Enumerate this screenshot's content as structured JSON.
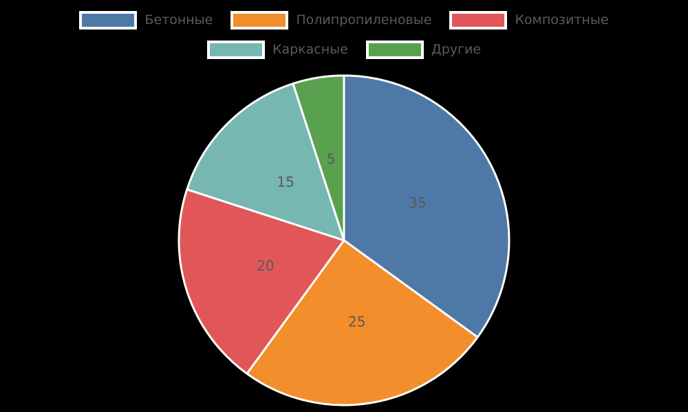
{
  "chart_data": {
    "type": "pie",
    "labels": [
      "Бетонные",
      "Полипропиленовые",
      "Композитные",
      "Каркасные",
      "Другие"
    ],
    "values": [
      35,
      25,
      20,
      15,
      5
    ],
    "value_labels": [
      "35",
      "25",
      "20",
      "15",
      "5"
    ],
    "colors": [
      "#4e79a7",
      "#f28e2b",
      "#e15759",
      "#76b7b2",
      "#59a14f"
    ],
    "start_angle_deg": 90,
    "direction": "clockwise",
    "label_distance": 0.5,
    "legend_position": "top",
    "legend_rows": [
      3,
      2
    ]
  },
  "style": {
    "background": "#000000",
    "wedge_edge_color": "#ffffff",
    "text_color": "#5a5a5a"
  }
}
